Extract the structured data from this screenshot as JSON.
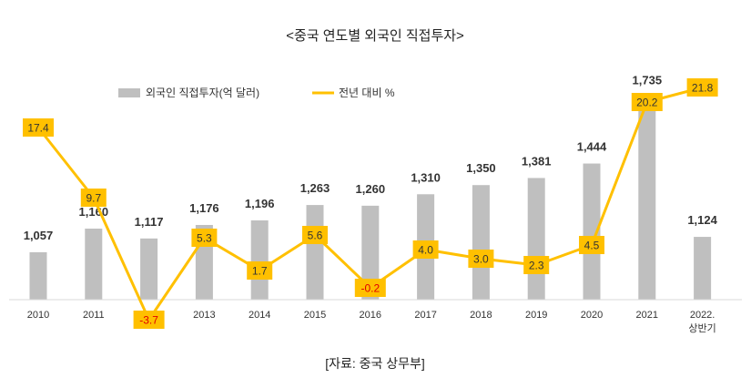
{
  "chart_data": {
    "type": "bar",
    "title": "<중국 연도별 외국인 직접투자>",
    "categories": [
      "2010",
      "2011",
      "2012",
      "2013",
      "2014",
      "2015",
      "2016",
      "2017",
      "2018",
      "2019",
      "2020",
      "2021",
      [
        "2022.",
        "상반기"
      ]
    ],
    "series": [
      {
        "name": "외국인 직접투자(억 달러)",
        "type": "bar",
        "color": "#bfbfbf",
        "values": [
          1057,
          1160,
          1117,
          1176,
          1196,
          1263,
          1260,
          1310,
          1350,
          1381,
          1444,
          1735,
          1124
        ],
        "labels": [
          "1,057",
          "1,160",
          "1,117",
          "1,176",
          "1,196",
          "1,263",
          "1,260",
          "1,310",
          "1,350",
          "1,381",
          "1,444",
          "1,735",
          "1,124"
        ]
      },
      {
        "name": "전년 대비 %",
        "type": "line",
        "color": "#ffc000",
        "values": [
          17.4,
          9.7,
          -3.7,
          5.3,
          1.7,
          5.6,
          -0.2,
          4.0,
          3.0,
          2.3,
          4.5,
          20.2,
          21.8
        ],
        "labels": [
          "17.4",
          "9.7",
          "-3.7",
          "5.3",
          "1.7",
          "5.6",
          "-0.2",
          "4.0",
          "3.0",
          "2.3",
          "4.5",
          "20.2",
          "21.8"
        ]
      }
    ],
    "ylim_bar": [
      850,
      1800
    ],
    "ylim_line": [
      -6,
      25
    ],
    "legend_position": "top-left",
    "grid": false
  },
  "source": "[자료: 중국 상무부]",
  "colors": {
    "bar": "#bfbfbf",
    "line": "#ffc000",
    "negative": "#e00000"
  }
}
